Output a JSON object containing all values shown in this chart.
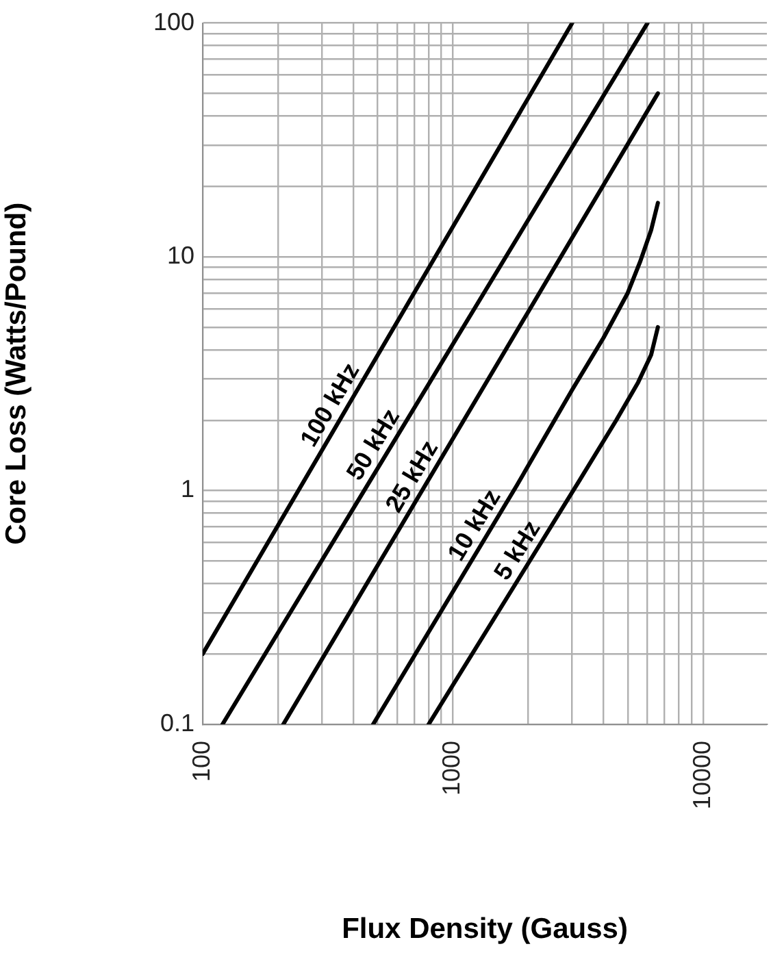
{
  "chart_data": {
    "type": "line",
    "xlabel": "Flux Density (Gauss)",
    "ylabel": "Core Loss (Watts/Pound)",
    "log": "xy",
    "grid": true,
    "legend": false,
    "marker": "none",
    "line_style": "solid",
    "xlim": [
      100,
      18000
    ],
    "ylim": [
      0.1,
      100
    ],
    "xticks": [
      100,
      {
        "value": 200,
        "label": null
      },
      {
        "value": 300,
        "label": null
      },
      {
        "value": 400,
        "label": null
      },
      {
        "value": 500,
        "label": null
      },
      {
        "value": 600,
        "label": null
      },
      {
        "value": 700,
        "label": null
      },
      {
        "value": 800,
        "label": null
      },
      {
        "value": 900,
        "label": null
      },
      1000,
      {
        "value": 2000,
        "label": null
      },
      {
        "value": 3000,
        "label": null
      },
      {
        "value": 4000,
        "label": null
      },
      {
        "value": 5000,
        "label": null
      },
      {
        "value": 6000,
        "label": null
      },
      {
        "value": 7000,
        "label": null
      },
      {
        "value": 8000,
        "label": null
      },
      {
        "value": 9000,
        "label": null
      },
      10000
    ],
    "yticks": [
      0.1,
      {
        "value": 0.2,
        "label": null
      },
      {
        "value": 0.3,
        "label": null
      },
      {
        "value": 0.4,
        "label": null
      },
      {
        "value": 0.5,
        "label": null
      },
      {
        "value": 0.6,
        "label": null
      },
      {
        "value": 0.7,
        "label": null
      },
      {
        "value": 0.8,
        "label": null
      },
      {
        "value": 0.9,
        "label": null
      },
      1,
      {
        "value": 2,
        "label": null
      },
      {
        "value": 3,
        "label": null
      },
      {
        "value": 4,
        "label": null
      },
      {
        "value": 5,
        "label": null
      },
      {
        "value": 6,
        "label": null
      },
      {
        "value": 7,
        "label": null
      },
      {
        "value": 8,
        "label": null
      },
      {
        "value": 9,
        "label": null
      },
      10,
      {
        "value": 20,
        "label": null
      },
      {
        "value": 30,
        "label": null
      },
      {
        "value": 40,
        "label": null
      },
      {
        "value": 50,
        "label": null
      },
      {
        "value": 60,
        "label": null
      },
      {
        "value": 70,
        "label": null
      },
      {
        "value": 80,
        "label": null
      },
      {
        "value": 90,
        "label": null
      },
      100
    ],
    "series": [
      {
        "name": "100 kHz",
        "color": "#000000",
        "x": [
          100,
          3000
        ],
        "values": [
          0.2,
          100
        ]
      },
      {
        "name": "50 kHz",
        "color": "#000000",
        "x": [
          120,
          6000
        ],
        "values": [
          0.1,
          100
        ]
      },
      {
        "name": "25 kHz",
        "color": "#000000",
        "x": [
          210,
          6600
        ],
        "values": [
          0.1,
          50
        ]
      },
      {
        "name": "10 kHz",
        "color": "#000000",
        "x": [
          480,
          1800,
          3000,
          4000,
          5000,
          5600,
          6200,
          6600
        ],
        "values": [
          0.1,
          1.05,
          2.7,
          4.5,
          7,
          9.5,
          13,
          17
        ]
      },
      {
        "name": "5 kHz",
        "color": "#000000",
        "x": [
          800,
          3200,
          4500,
          5500,
          6200,
          6600
        ],
        "values": [
          0.1,
          1.1,
          2.0,
          2.9,
          3.8,
          5
        ]
      }
    ]
  }
}
